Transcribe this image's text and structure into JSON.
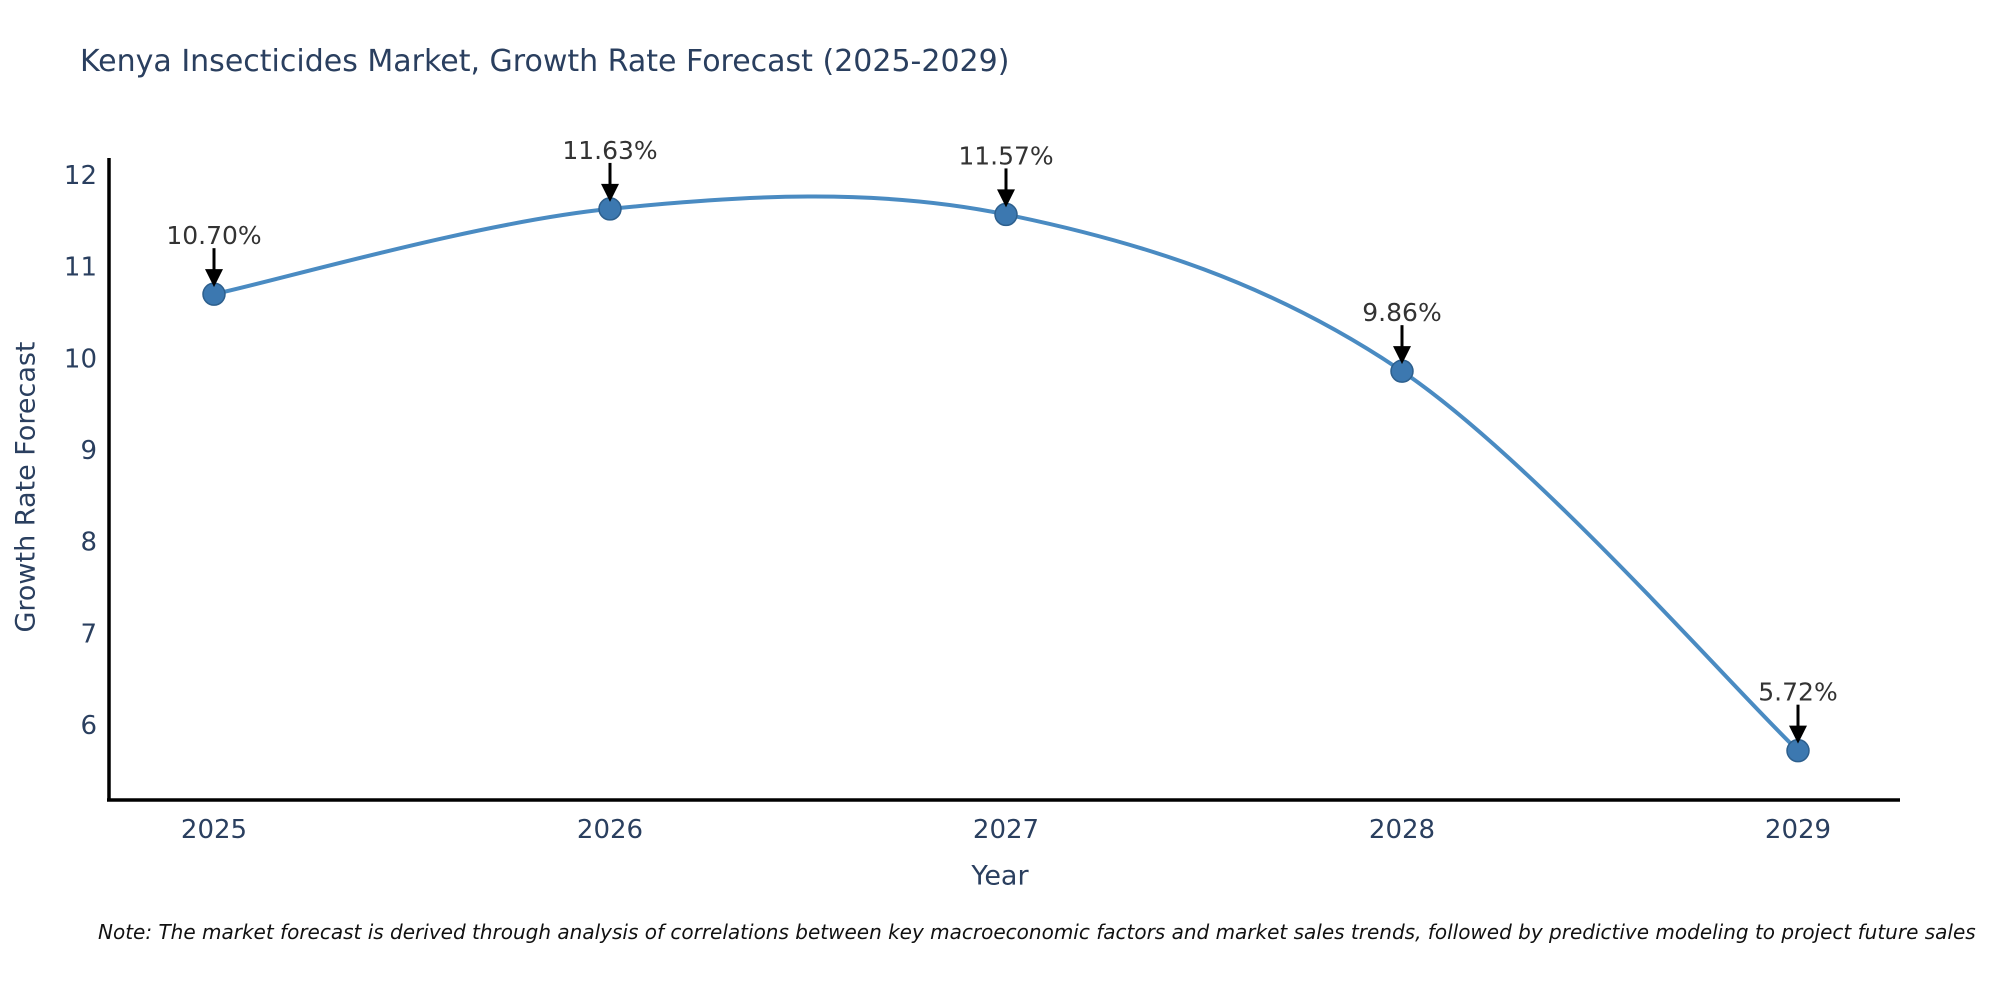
{
  "title": "Kenya Insecticides Market, Growth Rate Forecast (2025-2029)",
  "note": "Note: The market forecast is derived through analysis of correlations between key macroeconomic factors and market sales trends, followed by predictive modeling to project future sales",
  "chart_data": {
    "type": "line",
    "title": "Kenya Insecticides Market, Growth Rate Forecast (2025-2029)",
    "xlabel": "Year",
    "ylabel": "Growth Rate Forecast",
    "categories": [
      "2025",
      "2026",
      "2027",
      "2028",
      "2029"
    ],
    "values": [
      10.7,
      11.63,
      11.57,
      9.86,
      5.72
    ],
    "point_labels": [
      "10.70%",
      "11.63%",
      "11.57%",
      "9.86%",
      "5.72%"
    ],
    "yticks": [
      6,
      7,
      8,
      9,
      10,
      11,
      12
    ],
    "ylim": [
      5.2,
      12.15
    ],
    "line_shape": "spline",
    "grid": false,
    "legend_position": "none",
    "annotations": "black down-arrows from value labels to markers",
    "colors": {
      "line": "#4a8bc2",
      "marker": "#3c78b0",
      "marker_edge": "#2d5f8d",
      "axis": "#000000",
      "tick_text": "#2a3f5f",
      "annotation_text": "#333333",
      "annotation_arrow": "#000000"
    }
  }
}
